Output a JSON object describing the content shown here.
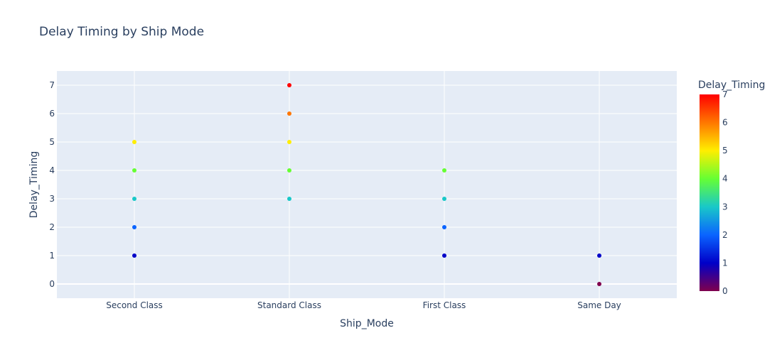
{
  "chart_data": {
    "type": "scatter",
    "title": "Delay Timing by Ship Mode",
    "xlabel": "Ship_Mode",
    "ylabel": "Delay_Timing",
    "categories": [
      "Second Class",
      "Standard Class",
      "First Class",
      "Same Day"
    ],
    "y_ticks": [
      0,
      1,
      2,
      3,
      4,
      5,
      6,
      7
    ],
    "ylim": [
      -0.5,
      7.5
    ],
    "grid": true,
    "points": [
      {
        "x": "Second Class",
        "y": 1
      },
      {
        "x": "Second Class",
        "y": 2
      },
      {
        "x": "Second Class",
        "y": 3
      },
      {
        "x": "Second Class",
        "y": 4
      },
      {
        "x": "Second Class",
        "y": 5
      },
      {
        "x": "Standard Class",
        "y": 3
      },
      {
        "x": "Standard Class",
        "y": 4
      },
      {
        "x": "Standard Class",
        "y": 5
      },
      {
        "x": "Standard Class",
        "y": 6
      },
      {
        "x": "Standard Class",
        "y": 7
      },
      {
        "x": "First Class",
        "y": 1
      },
      {
        "x": "First Class",
        "y": 2
      },
      {
        "x": "First Class",
        "y": 3
      },
      {
        "x": "First Class",
        "y": 4
      },
      {
        "x": "Same Day",
        "y": 0
      },
      {
        "x": "Same Day",
        "y": 1
      }
    ],
    "colorbar": {
      "title": "Delay_Timing",
      "range": [
        0,
        7
      ],
      "ticks": [
        0,
        1,
        2,
        3,
        4,
        5,
        6,
        7
      ],
      "colorscale": [
        "#80004d",
        "#0000c8",
        "#0a64ff",
        "#19c8c8",
        "#66ff33",
        "#ffee00",
        "#ff7700",
        "#ff0000"
      ]
    },
    "colors": {
      "plot_background": "#e5ecf6",
      "grid": "#ffffff",
      "text": "#2a3f5f"
    }
  }
}
